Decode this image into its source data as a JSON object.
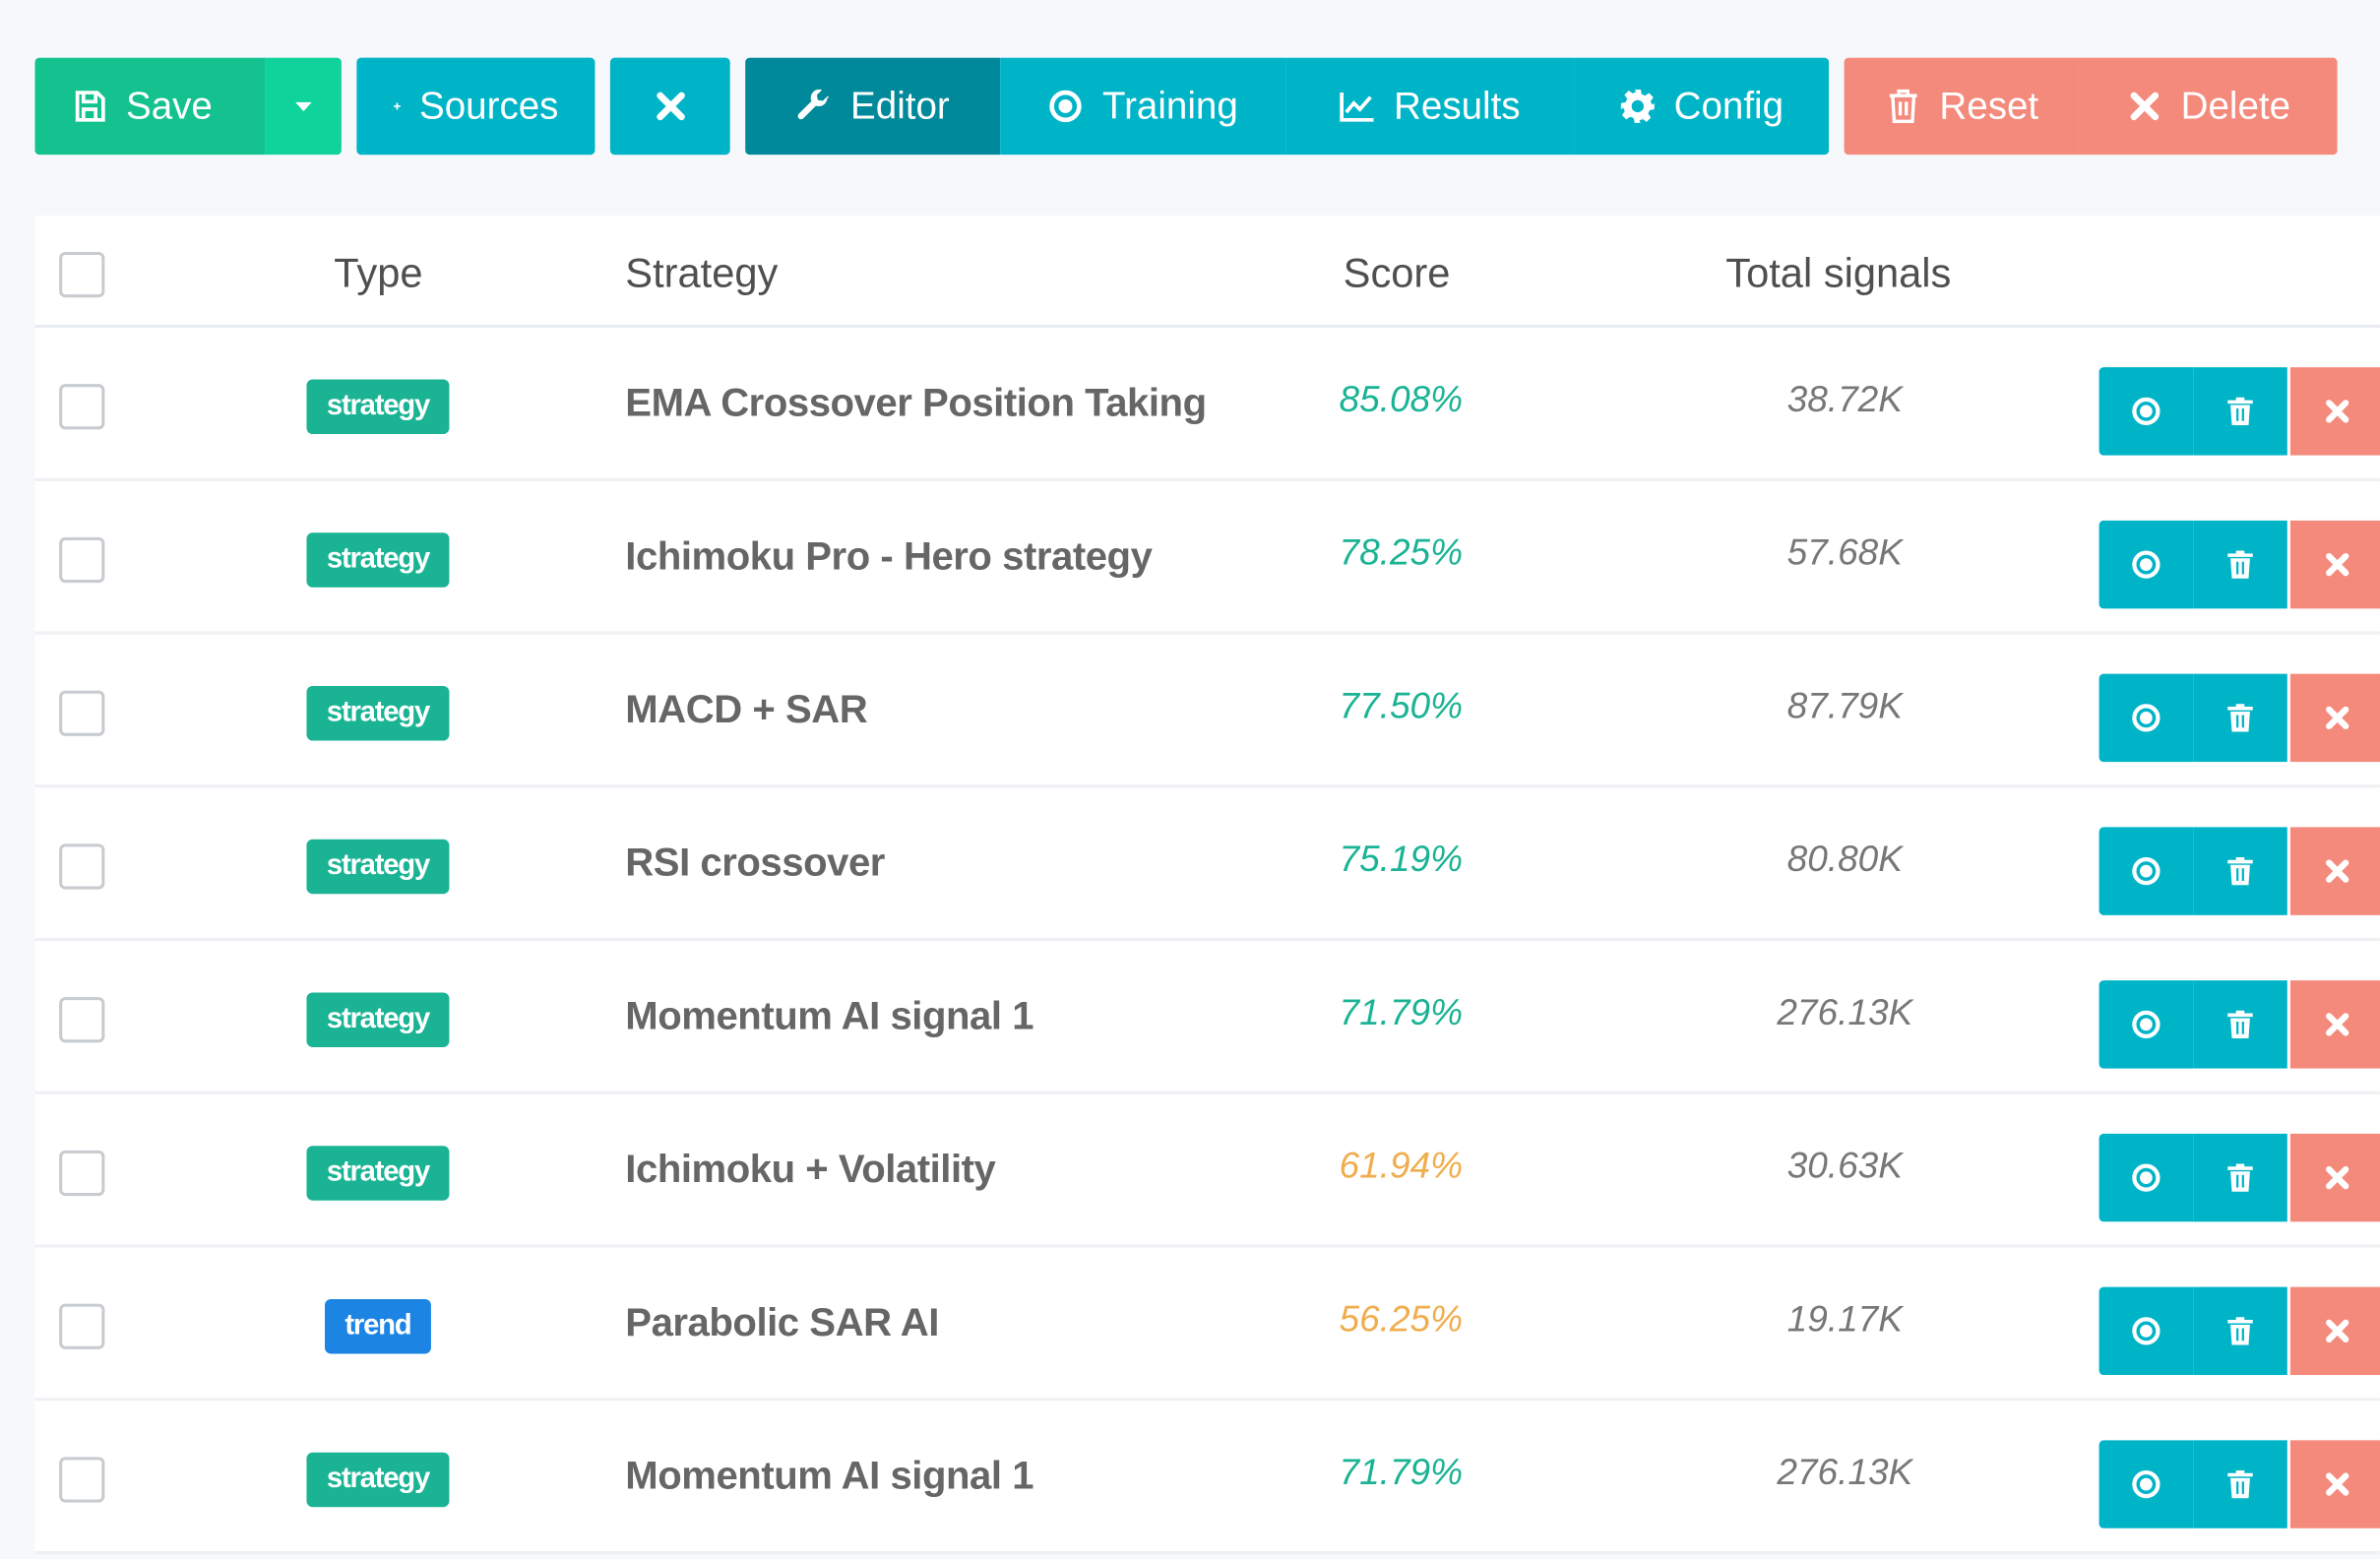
{
  "toolbar": {
    "save_label": "Save",
    "sources_label": "Sources",
    "editor_label": "Editor",
    "training_label": "Training",
    "results_label": "Results",
    "config_label": "Config",
    "reset_label": "Reset",
    "delete_label": "Delete"
  },
  "table": {
    "headers": {
      "type": "Type",
      "strategy": "Strategy",
      "score": "Score",
      "total_signals": "Total signals"
    },
    "rows": [
      {
        "type": "strategy",
        "strategy": "EMA Crossover Position Taking",
        "score": "85.08%",
        "signals": "38.72K",
        "score_color": "#1ab394"
      },
      {
        "type": "strategy",
        "strategy": "Ichimoku Pro - Hero strategy",
        "score": "78.25%",
        "signals": "57.68K",
        "score_color": "#1ab394"
      },
      {
        "type": "strategy",
        "strategy": "MACD + SAR",
        "score": "77.50%",
        "signals": "87.79K",
        "score_color": "#1ab394"
      },
      {
        "type": "strategy",
        "strategy": "RSI crossover",
        "score": "75.19%",
        "signals": "80.80K",
        "score_color": "#1ab394"
      },
      {
        "type": "strategy",
        "strategy": "Momentum AI signal 1",
        "score": "71.79%",
        "signals": "276.13K",
        "score_color": "#1ab394"
      },
      {
        "type": "strategy",
        "strategy": "Ichimoku + Volatility",
        "score": "61.94%",
        "signals": "30.63K",
        "score_color": "#f0ad4e"
      },
      {
        "type": "trend",
        "strategy": "Parabolic SAR AI",
        "score": "56.25%",
        "signals": "19.17K",
        "score_color": "#f0ad4e"
      },
      {
        "type": "strategy",
        "strategy": "Momentum AI signal 1",
        "score": "71.79%",
        "signals": "276.13K",
        "score_color": "#1ab394"
      }
    ]
  },
  "colors": {
    "save": "#13c28f",
    "primary": "#00b4c8",
    "primary_active": "#00899a",
    "danger": "#f48a7c",
    "strategy_badge": "#1ab394",
    "trend_badge": "#1c84e3"
  },
  "icons": {
    "save": "floppy-disk-icon",
    "caret": "caret-down-icon",
    "sources": "plus-icon",
    "close": "times-icon",
    "editor": "wrench-icon",
    "training": "dot-circle-icon",
    "results": "line-chart-icon",
    "config": "gear-icon",
    "reset": "trash-icon",
    "delete": "times-icon"
  }
}
